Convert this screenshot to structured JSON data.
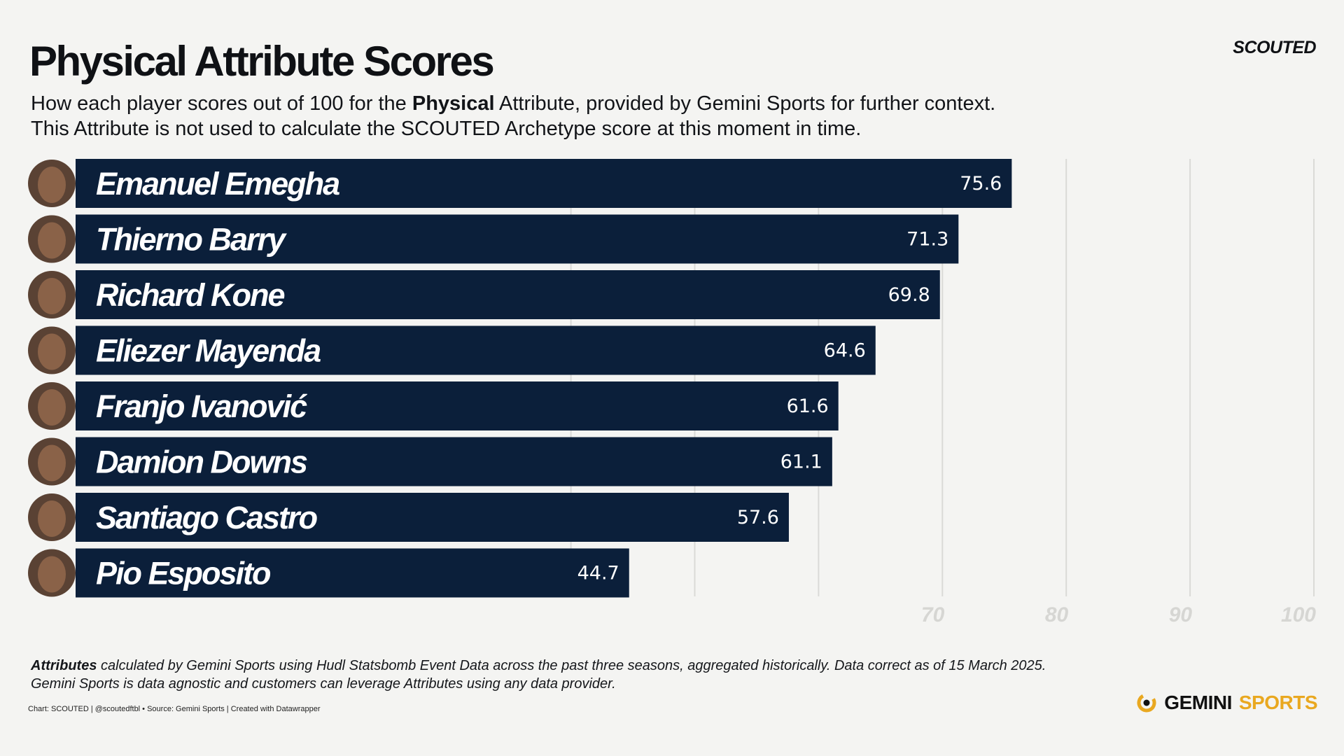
{
  "title": "Physical Attribute Scores",
  "brand": "SCOUTED",
  "subtitle": {
    "l1_pre": "How each player scores out of 100 for the ",
    "l1_bold": "Physical",
    "l1_post": " Attribute, provided by Gemini Sports for further context.",
    "l2": "This Attribute is not used to calculate the SCOUTED Archetype score at this moment in time."
  },
  "chart_data": {
    "type": "bar",
    "orientation": "horizontal",
    "categories": [
      "Emanuel Emegha",
      "Thierno Barry",
      "Richard Kone",
      "Eliezer Mayenda",
      "Franjo Ivanović",
      "Damion Downs",
      "Santiago Castro",
      "Pio Esposito"
    ],
    "values": [
      75.6,
      71.3,
      69.8,
      64.6,
      61.6,
      61.1,
      57.6,
      44.7
    ],
    "xlim": [
      0,
      100
    ],
    "gridlines": [
      40,
      50,
      60,
      70,
      80,
      90,
      100
    ],
    "tick_labels": [
      "70",
      "80",
      "90",
      "100"
    ],
    "title": "Physical Attribute Scores",
    "xlabel": "",
    "ylabel": ""
  },
  "notes": {
    "l1_bold": "Attributes",
    "l1_rest": " calculated by Gemini Sports using Hudl Statsbomb Event Data across the past three seasons, aggregated historically. Data correct as of 15 March 2025.",
    "l2": "Gemini Sports is data agnostic and customers can leverage Attributes using any data provider."
  },
  "credit": "Chart: SCOUTED | @scoutedftbl • Source: Gemini Sports | Created with Datawrapper",
  "logo": {
    "word1": "GEMINI",
    "word2": "SPORTS"
  },
  "colors": {
    "bar": "#0b1f3a",
    "grid": "#dadad7",
    "tick": "#d6d6d3",
    "accent": "#e9a820",
    "background": "#f4f4f2"
  }
}
